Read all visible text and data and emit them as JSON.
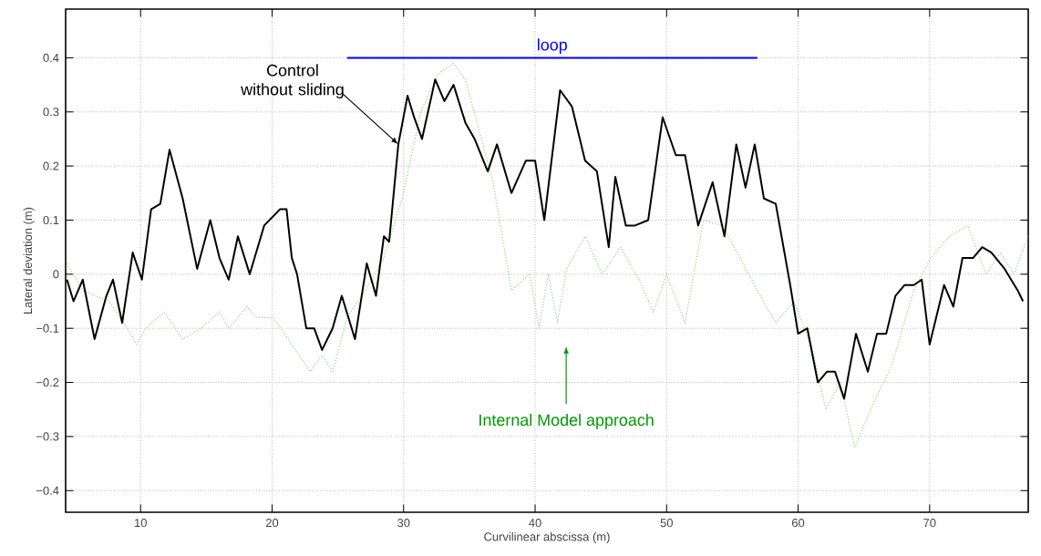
{
  "chart_data": {
    "type": "line",
    "xlabel": "Curvilinear abscissa (m)",
    "ylabel": "Lateral deviation (m)",
    "xlim": [
      4.3,
      77.5
    ],
    "ylim": [
      -0.44,
      0.49
    ],
    "xticks": [
      10,
      20,
      30,
      40,
      50,
      60,
      70
    ],
    "yticks": [
      {
        "value": -0.4,
        "label": "−0.4"
      },
      {
        "value": -0.3,
        "label": "−0.3"
      },
      {
        "value": -0.2,
        "label": "−0.2"
      },
      {
        "value": -0.1,
        "label": "−0.1"
      },
      0,
      0.1,
      0.2,
      0.3,
      0.4
    ],
    "grid": true,
    "series": [
      {
        "name": "loop",
        "color": "#0000ff",
        "line_style": "solid",
        "x": [
          25.7,
          56.9
        ],
        "values": [
          0.4,
          0.4
        ]
      },
      {
        "color": "#99cc99",
        "line_style": "dotted",
        "x": [
          4.4,
          5.6,
          7.6,
          9.0,
          9.7,
          10.4,
          11.8,
          13.2,
          14.6,
          16.0,
          16.7,
          18.1,
          18.8,
          20.1,
          21.5,
          22.9,
          23.8,
          24.6,
          25.7,
          27.1,
          28.5,
          29.9,
          31.3,
          32.6,
          33.8,
          34.7,
          35.7,
          36.8,
          38.2,
          39.6,
          40.3,
          41.0,
          41.7,
          42.4,
          43.8,
          45.1,
          46.5,
          47.9,
          49.0,
          50.0,
          51.4,
          52.8,
          54.2,
          55.6,
          56.9,
          58.3,
          59.7,
          61.1,
          62.1,
          63.2,
          64.3,
          65.7,
          67.1,
          68.8,
          70.1,
          71.5,
          72.9,
          74.3,
          75.4,
          76.4,
          77.5
        ],
        "values": [
          0.02,
          -0.03,
          -0.05,
          -0.1,
          -0.13,
          -0.1,
          -0.07,
          -0.12,
          -0.1,
          -0.07,
          -0.1,
          -0.06,
          -0.08,
          -0.08,
          -0.13,
          -0.18,
          -0.15,
          -0.18,
          -0.08,
          -0.03,
          0.03,
          0.14,
          0.3,
          0.37,
          0.39,
          0.36,
          0.27,
          0.17,
          -0.03,
          0.0,
          -0.1,
          0.0,
          -0.09,
          0.01,
          0.07,
          0.0,
          0.05,
          -0.01,
          -0.07,
          0.0,
          -0.09,
          0.1,
          0.09,
          0.03,
          -0.03,
          -0.09,
          -0.05,
          -0.14,
          -0.25,
          -0.2,
          -0.32,
          -0.24,
          -0.17,
          -0.03,
          0.03,
          0.07,
          0.09,
          0.0,
          0.04,
          0.0,
          0.07
        ]
      },
      {
        "color": "#000000",
        "line_style": "solid",
        "x": [
          4.4,
          4.9,
          5.6,
          6.5,
          7.4,
          7.9,
          8.6,
          9.4,
          10.1,
          10.8,
          11.5,
          12.2,
          13.2,
          14.3,
          15.3,
          16.0,
          16.7,
          17.4,
          18.3,
          19.4,
          20.6,
          21.1,
          21.5,
          21.9,
          22.6,
          23.2,
          23.8,
          24.6,
          25.3,
          26.3,
          27.2,
          27.9,
          28.5,
          28.9,
          29.6,
          30.3,
          30.8,
          31.4,
          32.4,
          33.1,
          33.8,
          34.7,
          35.4,
          36.4,
          37.1,
          38.2,
          39.3,
          40.0,
          40.7,
          41.9,
          42.8,
          43.8,
          44.7,
          45.6,
          46.1,
          46.9,
          47.6,
          48.6,
          49.7,
          50.7,
          51.4,
          52.4,
          53.5,
          54.4,
          55.3,
          56.0,
          56.7,
          57.4,
          58.3,
          59.4,
          60.0,
          60.7,
          61.5,
          62.2,
          62.8,
          63.5,
          64.4,
          65.3,
          66.0,
          66.7,
          67.4,
          68.1,
          68.8,
          69.4,
          70.0,
          71.1,
          71.8,
          72.5,
          73.3,
          74.0,
          74.7,
          75.7,
          76.7,
          77.1
        ],
        "values": [
          -0.01,
          -0.05,
          -0.01,
          -0.12,
          -0.04,
          -0.01,
          -0.09,
          0.04,
          -0.01,
          0.12,
          0.13,
          0.23,
          0.14,
          0.01,
          0.1,
          0.03,
          -0.01,
          0.07,
          0.0,
          0.09,
          0.12,
          0.12,
          0.03,
          0.0,
          -0.1,
          -0.1,
          -0.14,
          -0.1,
          -0.04,
          -0.12,
          0.02,
          -0.04,
          0.07,
          0.06,
          0.24,
          0.33,
          0.29,
          0.25,
          0.36,
          0.32,
          0.35,
          0.28,
          0.25,
          0.19,
          0.24,
          0.15,
          0.21,
          0.21,
          0.1,
          0.34,
          0.31,
          0.21,
          0.19,
          0.05,
          0.18,
          0.09,
          0.09,
          0.1,
          0.29,
          0.22,
          0.22,
          0.09,
          0.17,
          0.07,
          0.24,
          0.16,
          0.24,
          0.14,
          0.13,
          -0.02,
          -0.11,
          -0.1,
          -0.2,
          -0.18,
          -0.18,
          -0.23,
          -0.11,
          -0.18,
          -0.11,
          -0.11,
          -0.04,
          -0.02,
          -0.02,
          -0.01,
          -0.13,
          -0.02,
          -0.06,
          0.03,
          0.03,
          0.05,
          0.04,
          0.01,
          -0.03,
          -0.05
        ]
      }
    ],
    "annotations": [
      {
        "text": "Control without sliding",
        "x": 29.6,
        "y": 0.24
      },
      "Internal Model approach"
    ]
  }
}
